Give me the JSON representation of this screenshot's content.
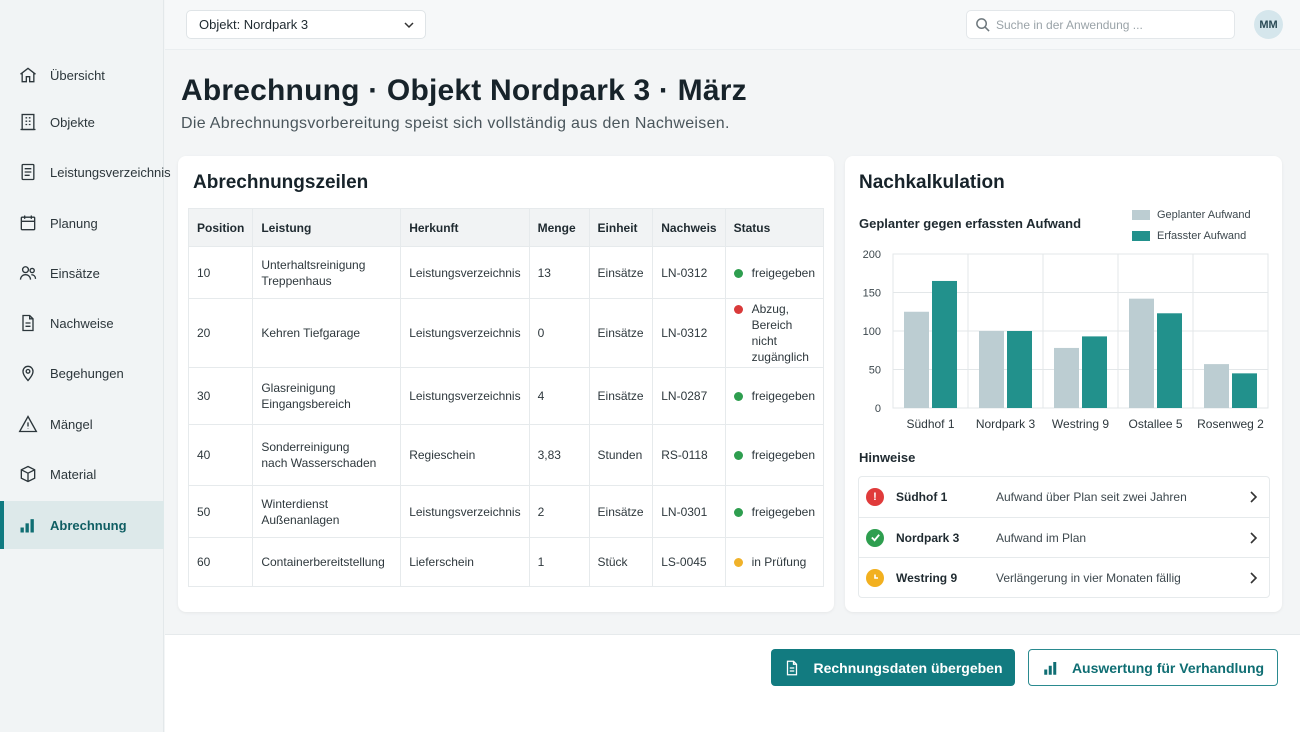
{
  "nav": {
    "items": [
      {
        "label": "Übersicht",
        "icon": "home-icon"
      },
      {
        "label": "Objekte",
        "icon": "building-icon"
      },
      {
        "label": "Leistungsverzeichnis",
        "icon": "document-list-icon"
      },
      {
        "label": "Planung",
        "icon": "calendar-icon"
      },
      {
        "label": "Einsätze",
        "icon": "people-icon"
      },
      {
        "label": "Nachweise",
        "icon": "document-icon"
      },
      {
        "label": "Begehungen",
        "icon": "location-pin-icon"
      },
      {
        "label": "Mängel",
        "icon": "warning-icon"
      },
      {
        "label": "Material",
        "icon": "box-icon"
      },
      {
        "label": "Abrechnung",
        "icon": "bar-chart-icon",
        "active": true
      }
    ]
  },
  "topbar": {
    "object_select": "Objekt: Nordpark 3",
    "search_placeholder": "Suche in der Anwendung ...",
    "avatar_initials": "MM"
  },
  "header": {
    "title": "Abrechnung · Objekt Nordpark 3 · März",
    "subtitle": "Die Abrechnungsvorbereitung speist sich vollständig aus den Nachweisen."
  },
  "billing": {
    "title": "Abrechnungszeilen",
    "columns": [
      "Position",
      "Leistung",
      "Herkunft",
      "Menge",
      "Einheit",
      "Nachweis",
      "Status"
    ],
    "rows": [
      {
        "position": "10",
        "leistung": [
          "Unterhaltsreinigung",
          "Treppenhaus"
        ],
        "herkunft": "Leistungsverzeichnis",
        "menge": "13",
        "einheit": "Einsätze",
        "nachweis": "LN-0312",
        "status": [
          "freigegeben"
        ],
        "status_color": "#2e9e4f"
      },
      {
        "position": "20",
        "leistung": [
          "Kehren Tiefgarage"
        ],
        "herkunft": "Leistungsverzeichnis",
        "menge": "0",
        "einheit": "Einsätze",
        "nachweis": "LN-0312",
        "status": [
          "Abzug,",
          "Bereich nicht",
          "zugänglich"
        ],
        "status_color": "#d93a3a"
      },
      {
        "position": "30",
        "leistung": [
          "Glasreinigung",
          "Eingangsbereich"
        ],
        "herkunft": "Leistungsverzeichnis",
        "menge": "4",
        "einheit": "Einsätze",
        "nachweis": "LN-0287",
        "status": [
          "freigegeben"
        ],
        "status_color": "#2e9e4f"
      },
      {
        "position": "40",
        "leistung": [
          "Sonderreinigung",
          "nach Wasserschaden"
        ],
        "herkunft": "Regieschein",
        "menge": "3,83",
        "einheit": "Stunden",
        "nachweis": "RS-0118",
        "status": [
          "freigegeben"
        ],
        "status_color": "#2e9e4f"
      },
      {
        "position": "50",
        "leistung": [
          "Winterdienst Außenanlagen"
        ],
        "herkunft": "Leistungsverzeichnis",
        "menge": "2",
        "einheit": "Einsätze",
        "nachweis": "LN-0301",
        "status": [
          "freigegeben"
        ],
        "status_color": "#2e9e4f"
      },
      {
        "position": "60",
        "leistung": [
          "Containerbereitstellung"
        ],
        "herkunft": "Lieferschein",
        "menge": "1",
        "einheit": "Stück",
        "nachweis": "LS-0045",
        "status": [
          "in Prüfung"
        ],
        "status_color": "#f0b22a"
      }
    ]
  },
  "nachkalkulation": {
    "title": "Nachkalkulation",
    "hints_title": "Hinweise",
    "hints": [
      {
        "name": "Südhof 1",
        "text": "Aufwand über Plan seit zwei Jahren",
        "type": "error",
        "icon": "alert-icon",
        "color": "#e03b3b"
      },
      {
        "name": "Nordpark 3",
        "text": "Aufwand im Plan",
        "type": "success",
        "icon": "check-icon",
        "color": "#2e9e4f"
      },
      {
        "name": "Westring 9",
        "text": "Verlängerung in vier Monaten fällig",
        "type": "warning",
        "icon": "clock-icon",
        "color": "#f2b01f"
      }
    ]
  },
  "chart_data": {
    "type": "bar",
    "title": "Geplanter gegen erfassten Aufwand",
    "categories": [
      "Südhof 1",
      "Nordpark 3",
      "Westring 9",
      "Ostallee 5",
      "Rosenweg 2"
    ],
    "series": [
      {
        "name": "Geplanter Aufwand",
        "values": [
          125,
          100,
          78,
          142,
          57
        ],
        "color": "#bccdd2"
      },
      {
        "name": "Erfasster Aufwand",
        "values": [
          165,
          100,
          93,
          123,
          45
        ],
        "color": "#22918c"
      }
    ],
    "yticks": [
      "0",
      "50",
      "100",
      "150",
      "200"
    ],
    "ylim": [
      0,
      200
    ],
    "grid": true,
    "legend": "top-right"
  },
  "actions": {
    "primary": "Rechnungsdaten übergeben",
    "secondary": "Auswertung für Verhandlung"
  }
}
